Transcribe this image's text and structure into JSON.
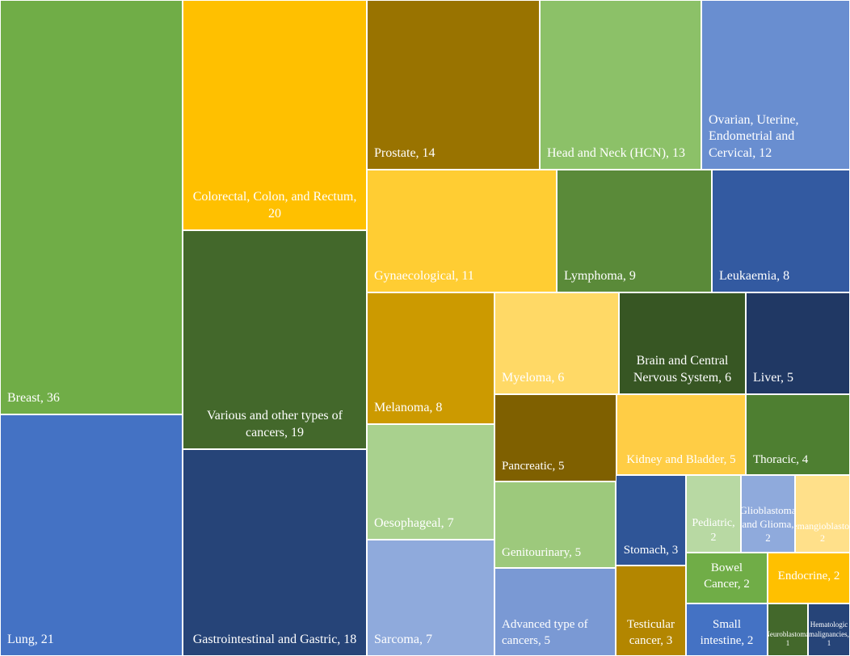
{
  "chart_data": {
    "type": "treemap",
    "unit": "count",
    "items": [
      {
        "label": "Breast, 36",
        "name": "Breast",
        "value": 36,
        "color": "#70ad47"
      },
      {
        "label": "Lung, 21",
        "name": "Lung",
        "value": 21,
        "color": "#4472c4"
      },
      {
        "label": "Colorectal, Colon, and Rectum, 20",
        "name": "Colorectal, Colon, and Rectum",
        "value": 20,
        "color": "#ffc000"
      },
      {
        "label": "Various and other types of cancers, 19",
        "name": "Various and other types of cancers",
        "value": 19,
        "color": "#43682b"
      },
      {
        "label": "Gastrointestinal and Gastric, 18",
        "name": "Gastrointestinal and Gastric",
        "value": 18,
        "color": "#264478"
      },
      {
        "label": "Prostate, 14",
        "name": "Prostate",
        "value": 14,
        "color": "#997300"
      },
      {
        "label": "Head and Neck (HCN), 13",
        "name": "Head and Neck (HCN)",
        "value": 13,
        "color": "#8cc168"
      },
      {
        "label": "Ovarian, Uterine, Endometrial and Cervical, 12",
        "name": "Ovarian, Uterine, Endometrial and Cervical",
        "value": 12,
        "color": "#698ed0"
      },
      {
        "label": "Gynaecological, 11",
        "name": "Gynaecological",
        "value": 11,
        "color": "#ffcd33"
      },
      {
        "label": "Lymphoma, 9",
        "name": "Lymphoma",
        "value": 9,
        "color": "#5a8a39"
      },
      {
        "label": "Leukaemia, 8",
        "name": "Leukaemia",
        "value": 8,
        "color": "#335aa1"
      },
      {
        "label": "Melanoma, 8",
        "name": "Melanoma",
        "value": 8,
        "color": "#cc9a00"
      },
      {
        "label": "Myeloma, 6",
        "name": "Myeloma",
        "value": 6,
        "color": "#ffd966"
      },
      {
        "label": "Brain and Central Nervous System, 6",
        "name": "Brain and Central Nervous System",
        "value": 6,
        "color": "#375623"
      },
      {
        "label": "Liver, 5",
        "name": "Liver",
        "value": 5,
        "color": "#203864"
      },
      {
        "label": "Pancreatic, 5",
        "name": "Pancreatic",
        "value": 5,
        "color": "#7f6000"
      },
      {
        "label": "Kidney and Bladder, 5",
        "name": "Kidney and Bladder",
        "value": 5,
        "color": "#ffcd45"
      },
      {
        "label": "Thoracic, 4",
        "name": "Thoracic",
        "value": 4,
        "color": "#4e7f31"
      },
      {
        "label": "Oesophageal, 7",
        "name": "Oesophageal",
        "value": 7,
        "color": "#a9d18e"
      },
      {
        "label": "Genitourinary, 5",
        "name": "Genitourinary",
        "value": 5,
        "color": "#9dc97c"
      },
      {
        "label": "Stomach, 3",
        "name": "Stomach",
        "value": 3,
        "color": "#2f5597"
      },
      {
        "label": "Pediatric, 2",
        "name": "Pediatric",
        "value": 2,
        "color": "#b8d9a3"
      },
      {
        "label": "Glioblastoma and Glioma, 2",
        "name": "Glioblastoma and Glioma",
        "value": 2,
        "color": "#8faadc"
      },
      {
        "label": "Haemangioblastoma, 2",
        "name": "Haemangioblastoma",
        "value": 2,
        "color": "#ffe08a"
      },
      {
        "label": "Bowel Cancer, 2",
        "name": "Bowel Cancer",
        "value": 2,
        "color": "#70ad47"
      },
      {
        "label": "Endocrine, 2",
        "name": "Endocrine",
        "value": 2,
        "color": "#ffc000"
      },
      {
        "label": "Sarcoma, 7",
        "name": "Sarcoma",
        "value": 7,
        "color": "#8faadc"
      },
      {
        "label": "Advanced type of cancers, 5",
        "name": "Advanced type of cancers",
        "value": 5,
        "color": "#7a99d4"
      },
      {
        "label": "Testicular cancer, 3",
        "name": "Testicular cancer",
        "value": 3,
        "color": "#b38600"
      },
      {
        "label": "Small intestine, 2",
        "name": "Small intestine",
        "value": 2,
        "color": "#4472c4"
      },
      {
        "label": "Neuroblastoma, 1",
        "name": "Neuroblastoma",
        "value": 1,
        "color": "#43682b"
      },
      {
        "label": "Hematologic malignancies, 1",
        "name": "Hematologic malignancies",
        "value": 1,
        "color": "#264478"
      }
    ]
  }
}
